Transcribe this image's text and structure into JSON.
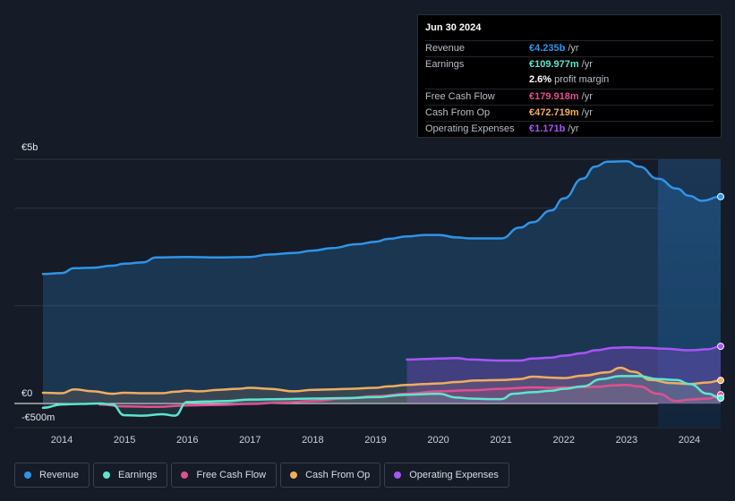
{
  "tooltip": {
    "date": "Jun 30 2024",
    "rows": [
      {
        "label": "Revenue",
        "value": "€4.235b",
        "unit": "/yr",
        "color": "#2f94e8"
      },
      {
        "label": "Earnings",
        "value": "€109.977m",
        "unit": "/yr",
        "color": "#5ce6cf"
      },
      {
        "label": "",
        "value": "2.6%",
        "unit": "profit margin",
        "color": "#ffffff"
      },
      {
        "label": "Free Cash Flow",
        "value": "€179.918m",
        "unit": "/yr",
        "color": "#e0508f"
      },
      {
        "label": "Cash From Op",
        "value": "€472.719m",
        "unit": "/yr",
        "color": "#f0ad60"
      },
      {
        "label": "Operating Expenses",
        "value": "€1.171b",
        "unit": "/yr",
        "color": "#a855f7"
      }
    ]
  },
  "legend": {
    "items": [
      {
        "label": "Revenue",
        "color": "#2f94e8"
      },
      {
        "label": "Earnings",
        "color": "#5ce6cf"
      },
      {
        "label": "Free Cash Flow",
        "color": "#e0508f"
      },
      {
        "label": "Cash From Op",
        "color": "#f0ad60"
      },
      {
        "label": "Operating Expenses",
        "color": "#a855f7"
      }
    ]
  },
  "chart_data": {
    "type": "area",
    "title": "",
    "xlabel": "",
    "ylabel": "",
    "y_tick_labels": [
      "€5b",
      "€0",
      "-€500m"
    ],
    "ylim": [
      -500,
      5000
    ],
    "xlim": [
      2013.7,
      2024.5
    ],
    "x_ticks": [
      2014,
      2015,
      2016,
      2017,
      2018,
      2019,
      2020,
      2021,
      2022,
      2023,
      2024
    ],
    "x_tick_labels": [
      "2014",
      "2015",
      "2016",
      "2017",
      "2018",
      "2019",
      "2020",
      "2021",
      "2022",
      "2023",
      "2024"
    ],
    "forecast_start": 2023.5,
    "series": [
      {
        "name": "Revenue",
        "color": "#2f94e8",
        "x": [
          2013.7,
          2014.0,
          2014.2,
          2014.5,
          2014.8,
          2015.0,
          2015.3,
          2015.5,
          2016.0,
          2016.5,
          2017.0,
          2017.3,
          2017.7,
          2018.0,
          2018.3,
          2018.7,
          2019.0,
          2019.2,
          2019.5,
          2019.8,
          2020.0,
          2020.3,
          2020.5,
          2021.0,
          2021.3,
          2021.5,
          2021.8,
          2022.0,
          2022.3,
          2022.5,
          2022.7,
          2023.0,
          2023.2,
          2023.5,
          2023.8,
          2024.0,
          2024.2,
          2024.5
        ],
        "values": [
          2650,
          2670,
          2770,
          2780,
          2820,
          2860,
          2890,
          2990,
          3000,
          2990,
          3000,
          3050,
          3080,
          3130,
          3180,
          3260,
          3310,
          3370,
          3420,
          3450,
          3450,
          3400,
          3380,
          3380,
          3600,
          3710,
          3950,
          4200,
          4600,
          4850,
          4950,
          4960,
          4850,
          4600,
          4400,
          4250,
          4150,
          4235
        ]
      },
      {
        "name": "Operating Expenses",
        "color": "#a855f7",
        "x": [
          2019.5,
          2019.8,
          2020.0,
          2020.3,
          2020.5,
          2021.0,
          2021.3,
          2021.5,
          2021.8,
          2022.0,
          2022.3,
          2022.5,
          2022.8,
          2023.0,
          2023.3,
          2023.6,
          2024.0,
          2024.3,
          2024.5
        ],
        "values": [
          900,
          910,
          920,
          930,
          900,
          880,
          880,
          920,
          940,
          980,
          1030,
          1090,
          1140,
          1150,
          1140,
          1120,
          1090,
          1110,
          1171
        ]
      },
      {
        "name": "Cash From Op",
        "color": "#f0ad60",
        "x": [
          2013.7,
          2014.0,
          2014.2,
          2014.5,
          2014.8,
          2015.0,
          2015.3,
          2015.6,
          2015.8,
          2016.0,
          2016.2,
          2016.5,
          2016.8,
          2017.0,
          2017.3,
          2017.7,
          2018.0,
          2018.3,
          2018.6,
          2019.0,
          2019.2,
          2019.5,
          2019.8,
          2020.0,
          2020.3,
          2020.6,
          2021.0,
          2021.3,
          2021.5,
          2021.8,
          2022.0,
          2022.3,
          2022.7,
          2022.9,
          2023.1,
          2023.4,
          2023.7,
          2024.0,
          2024.3,
          2024.5
        ],
        "values": [
          220,
          210,
          290,
          250,
          200,
          220,
          210,
          210,
          240,
          260,
          250,
          280,
          300,
          320,
          300,
          250,
          280,
          290,
          300,
          320,
          350,
          380,
          400,
          410,
          440,
          470,
          480,
          500,
          550,
          530,
          520,
          570,
          640,
          730,
          650,
          480,
          420,
          400,
          430,
          473
        ]
      },
      {
        "name": "Free Cash Flow",
        "color": "#e0508f",
        "x": [
          2014.6,
          2015.0,
          2015.5,
          2016.0,
          2016.5,
          2017.0,
          2017.5,
          2018.0,
          2018.5,
          2019.0,
          2019.5,
          2020.0,
          2020.5,
          2021.0,
          2021.5,
          2021.8,
          2022.0,
          2022.5,
          2022.8,
          2023.0,
          2023.2,
          2023.5,
          2023.8,
          2024.0,
          2024.3,
          2024.5
        ],
        "values": [
          -20,
          -60,
          -70,
          -40,
          -30,
          -10,
          20,
          50,
          100,
          150,
          200,
          250,
          270,
          300,
          330,
          320,
          330,
          340,
          370,
          380,
          350,
          200,
          50,
          80,
          100,
          180
        ]
      },
      {
        "name": "Earnings",
        "color": "#5ce6cf",
        "x": [
          2013.7,
          2014.0,
          2014.3,
          2014.6,
          2014.8,
          2015.0,
          2015.3,
          2015.6,
          2015.8,
          2016.0,
          2016.3,
          2016.6,
          2017.0,
          2017.5,
          2018.0,
          2018.5,
          2019.0,
          2019.5,
          2020.0,
          2020.3,
          2020.5,
          2020.8,
          2021.0,
          2021.2,
          2021.5,
          2021.8,
          2022.0,
          2022.3,
          2022.6,
          2022.9,
          2023.2,
          2023.5,
          2023.8,
          2024.0,
          2024.3,
          2024.5
        ],
        "values": [
          -90,
          -20,
          -10,
          0,
          -20,
          -240,
          -250,
          -220,
          -250,
          30,
          40,
          50,
          80,
          90,
          100,
          110,
          130,
          180,
          200,
          120,
          100,
          90,
          90,
          200,
          230,
          260,
          300,
          350,
          500,
          560,
          560,
          500,
          480,
          400,
          200,
          110
        ]
      }
    ]
  }
}
